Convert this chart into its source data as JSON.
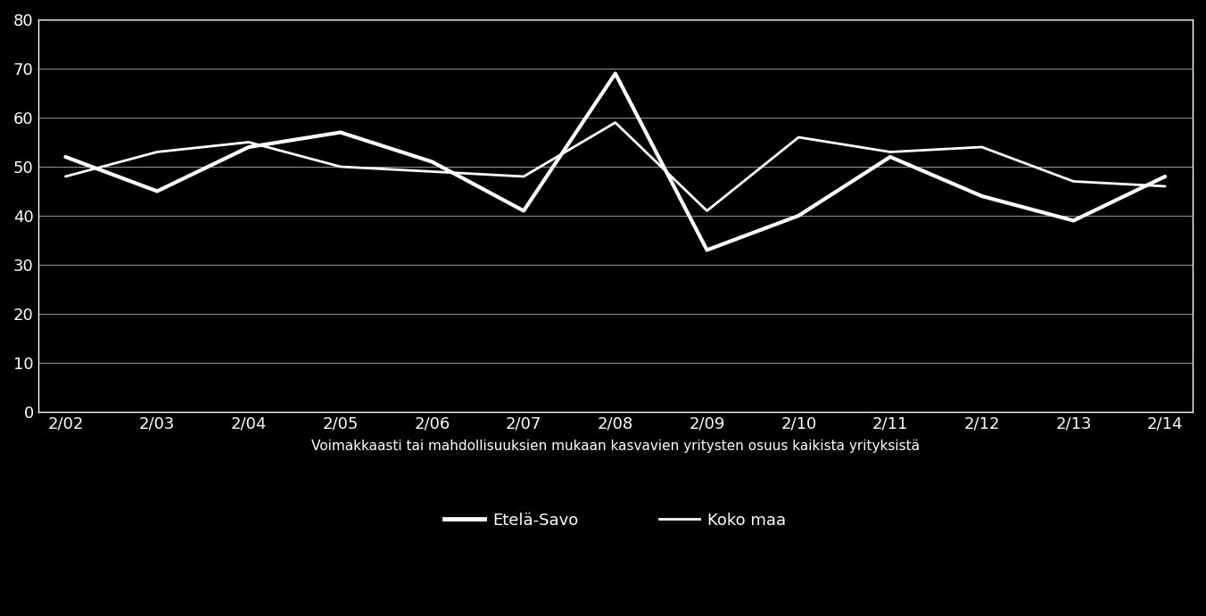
{
  "x_labels": [
    "2/02",
    "2/03",
    "2/04",
    "2/05",
    "2/06",
    "2/07",
    "2/08",
    "2/09",
    "2/10",
    "2/11",
    "2/12",
    "2/13",
    "2/14"
  ],
  "etela_savo": [
    52,
    45,
    54,
    57,
    51,
    41,
    69,
    33,
    40,
    52,
    44,
    39,
    48
  ],
  "koko_maa": [
    48,
    53,
    55,
    50,
    49,
    48,
    59,
    41,
    56,
    53,
    54,
    47,
    46
  ],
  "ylabel_values": [
    0,
    10,
    20,
    30,
    40,
    50,
    60,
    70,
    80
  ],
  "xlabel_text": "Voimakkaasti tai mahdollisuuksien mukaan kasvavien yritysten osuus kaikista yrityksistä",
  "legend_etela_savo": "Etelä-Savo",
  "legend_koko_maa": "Koko maa",
  "background_color": "#000000",
  "text_color": "#ffffff",
  "line_color_etela_savo": "#ffffff",
  "line_color_koko_maa": "#ffffff",
  "grid_color": "#ffffff",
  "ylim": [
    0,
    80
  ],
  "etela_savo_lw": 3.0,
  "koko_maa_lw": 2.0,
  "font_size_ticks": 13,
  "font_size_xlabel": 11,
  "font_size_legend": 13,
  "spine_color": "#ffffff",
  "spine_lw": 1.0
}
